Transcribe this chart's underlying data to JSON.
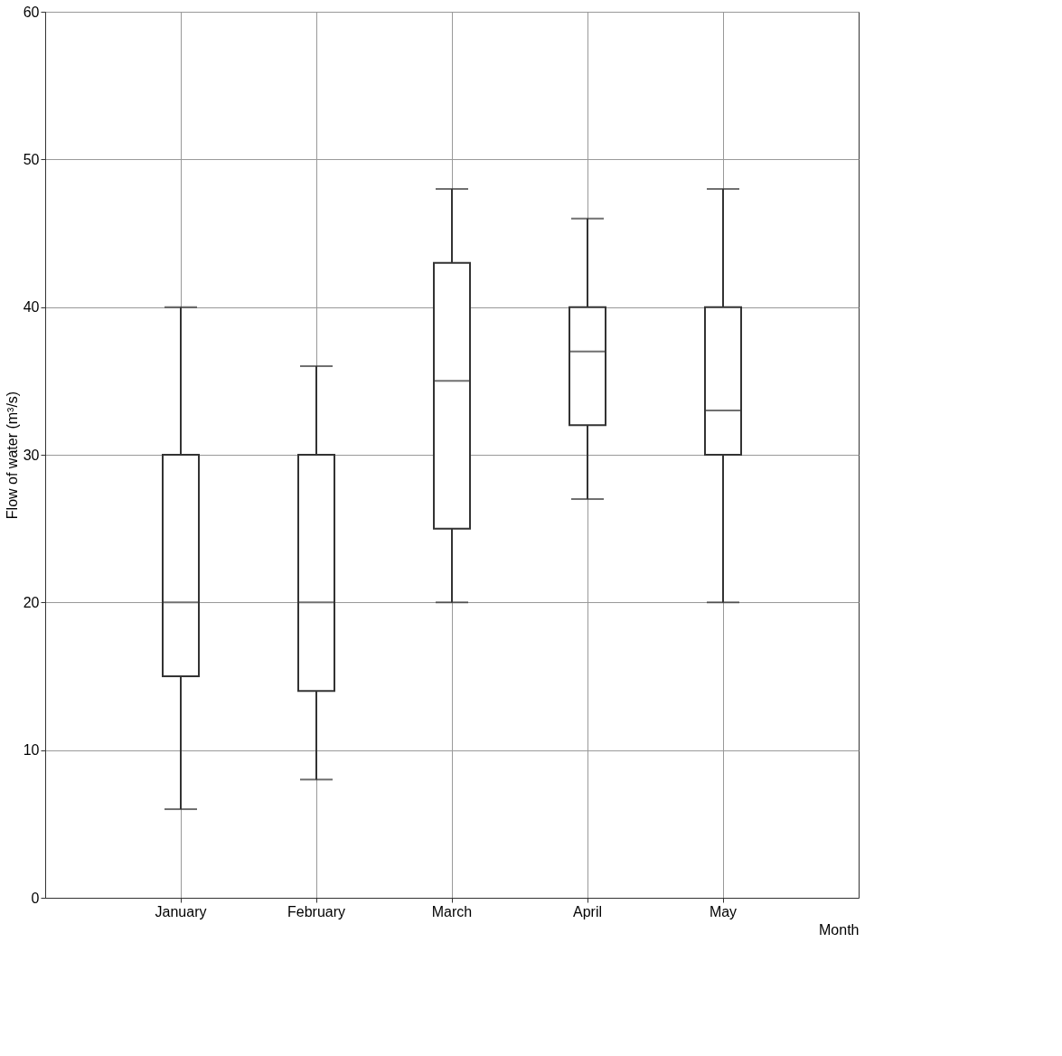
{
  "chart_data": {
    "type": "box",
    "xlabel": "Month",
    "ylabel": "Flow of water (m³/s)",
    "categories": [
      "January",
      "February",
      "March",
      "April",
      "May"
    ],
    "boxes": [
      {
        "low": 6,
        "q1": 15,
        "median": 20,
        "q3": 30,
        "high": 40
      },
      {
        "low": 8,
        "q1": 14,
        "median": 20,
        "q3": 30,
        "high": 36
      },
      {
        "low": 20,
        "q1": 25,
        "median": 35,
        "q3": 43,
        "high": 48
      },
      {
        "low": 27,
        "q1": 32,
        "median": 37,
        "q3": 40,
        "high": 46
      },
      {
        "low": 20,
        "q1": 30,
        "median": 33,
        "q3": 40,
        "high": 48
      }
    ],
    "ylim": [
      0,
      60
    ],
    "yticks": [
      0,
      10,
      20,
      30,
      40,
      50,
      60
    ],
    "grid": true
  }
}
